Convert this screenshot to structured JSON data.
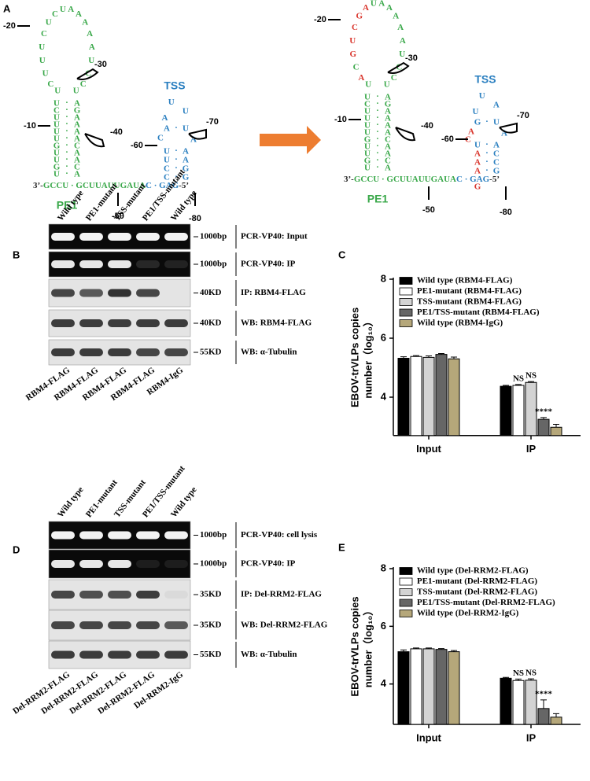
{
  "panel_a": {
    "letter": "A",
    "pe1_label": "PE1",
    "tss_label": "TSS",
    "positions": [
      "-20",
      "-10",
      "-30",
      "-40",
      "-50",
      "-60",
      "-70",
      "-80"
    ],
    "structures": [
      {
        "loop": [
          "U",
          "C",
          "U",
          "U",
          "U",
          "C",
          "U",
          "C",
          "U",
          "A",
          "A",
          "A",
          "A",
          "A",
          "U",
          "C",
          "C",
          "U"
        ],
        "stem": [
          [
            "U",
            "A"
          ],
          [
            "C",
            "G"
          ],
          [
            "U",
            "A"
          ],
          [
            "U",
            "A"
          ],
          [
            "U",
            "A"
          ],
          [
            "U",
            "A"
          ],
          [
            "G",
            "C"
          ],
          [
            "U",
            "A"
          ],
          [
            "U",
            "A"
          ],
          [
            "G",
            "C"
          ],
          [
            "U",
            "A"
          ]
        ],
        "tss_loop": [
          "A",
          "U",
          "U"
        ],
        "tss_top": [
          [
            "A",
            "U"
          ]
        ],
        "tss_bulge_left": [
          "C"
        ],
        "tss_bulge_right": [
          "A"
        ],
        "tss_stem": [
          [
            "U",
            "A"
          ],
          [
            "U",
            "A"
          ],
          [
            "C",
            "G"
          ],
          [
            "C",
            "G"
          ]
        ],
        "below": [],
        "strand": [
          {
            "text": "3’-",
            "color": "#222222"
          },
          {
            "text": "GCCU · GCUUAUUGAUA",
            "color": "#3aa84a"
          },
          {
            "text": "C · GAG",
            "color": "#2a7fc0"
          },
          {
            "text": "-5’",
            "color": "#222222"
          }
        ]
      },
      {
        "loop": [
          "U",
          {
            "text": "A",
            "color": "#d9342b"
          },
          "C",
          {
            "text": "G",
            "color": "#d9342b"
          },
          {
            "text": "U",
            "color": "#d9342b"
          },
          {
            "text": "C",
            "color": "#d9342b"
          },
          {
            "text": "G",
            "color": "#d9342b"
          },
          {
            "text": "A",
            "color": "#d9342b"
          },
          "U",
          "A",
          "A",
          "A",
          "A",
          "A",
          "U",
          "C",
          "C",
          "U"
        ],
        "stem": [
          [
            "U",
            "A"
          ],
          [
            "C",
            "G"
          ],
          [
            "U",
            "A"
          ],
          [
            "U",
            "A"
          ],
          [
            "U",
            "A"
          ],
          [
            "U",
            "A"
          ],
          [
            "G",
            "C"
          ],
          [
            "U",
            "A"
          ],
          [
            "U",
            "A"
          ],
          [
            "G",
            "C"
          ],
          [
            "U",
            "A"
          ]
        ],
        "tss_loop": [
          "U",
          "U",
          "A"
        ],
        "tss_top": [
          [
            "G",
            "U"
          ]
        ],
        "tss_bulge_left": [
          {
            "text": "A",
            "color": "#d9342b"
          },
          {
            "text": "C",
            "color": "#d9342b"
          }
        ],
        "tss_bulge_right": [
          "A"
        ],
        "tss_stem": [
          [
            "U",
            "A"
          ],
          [
            {
              "text": "A",
              "color": "#d9342b"
            },
            "C"
          ],
          [
            {
              "text": "A",
              "color": "#d9342b"
            },
            "C"
          ],
          [
            {
              "text": "A",
              "color": "#d9342b"
            },
            "G"
          ]
        ],
        "below": [
          {
            "text": "G",
            "color": "#d9342b"
          }
        ],
        "strand": [
          {
            "text": "3’-",
            "color": "#222222"
          },
          {
            "text": "GCCU · GCUUAUUGAUA",
            "color": "#3aa84a"
          },
          {
            "text": "C · GAG",
            "color": "#2a7fc0"
          },
          {
            "text": "-5’",
            "color": "#222222"
          }
        ]
      }
    ]
  },
  "gels": [
    {
      "letter": "B",
      "lanes": [
        "Wild type",
        "PE1-mutant",
        "TSS-mutant",
        "PE1/TSS-mutant",
        "Wild type"
      ],
      "bottom_labels": [
        "RBM4-FLAG",
        "RBM4-FLAG",
        "RBM4-FLAG",
        "RBM4-FLAG",
        "RBM4-IgG"
      ],
      "rows": [
        {
          "marker": "1000bp",
          "label": "PCR-VP40: Input",
          "background": "dark",
          "bands": [
            0.95,
            0.95,
            0.95,
            0.95,
            0.95
          ]
        },
        {
          "marker": "1000bp",
          "label": "PCR-VP40: IP",
          "background": "dark",
          "bands": [
            0.9,
            0.9,
            0.9,
            0.12,
            0.1
          ]
        },
        {
          "marker": "40KD",
          "label": "IP: RBM4-FLAG",
          "background": "light",
          "bands": [
            0.8,
            0.7,
            0.9,
            0.8,
            0
          ]
        },
        {
          "marker": "40KD",
          "label": "WB: RBM4-FLAG",
          "background": "light",
          "bands": [
            0.85,
            0.85,
            0.85,
            0.85,
            0.85
          ]
        },
        {
          "marker": "55KD",
          "label": "WB: α-Tubulin",
          "background": "light",
          "bands": [
            0.85,
            0.85,
            0.85,
            0.8,
            0.8
          ]
        }
      ]
    },
    {
      "letter": "D",
      "lanes": [
        "Wild type",
        "PE1-mutant",
        "TSS-mutant",
        "PE1/TSS-mutant",
        "Wild type"
      ],
      "bottom_labels": [
        "Del-RRM2-FLAG",
        "Del-RRM2-FLAG",
        "Del-RRM2-FLAG",
        "Del-RRM2-FLAG",
        "Del-RRM2-IgG"
      ],
      "rows": [
        {
          "marker": "1000bp",
          "label": "PCR-VP40: cell lysis",
          "background": "dark",
          "bands": [
            0.95,
            0.95,
            0.95,
            0.95,
            0.95
          ]
        },
        {
          "marker": "1000bp",
          "label": "PCR-VP40: IP",
          "background": "dark",
          "bands": [
            0.9,
            0.9,
            0.9,
            0.08,
            0.08
          ]
        },
        {
          "marker": "35KD",
          "label": "IP:  Del-RRM2-FLAG",
          "background": "light",
          "bands": [
            0.8,
            0.75,
            0.75,
            0.85,
            0.05
          ]
        },
        {
          "marker": "35KD",
          "label": "WB: Del-RRM2-FLAG",
          "background": "light",
          "bands": [
            0.8,
            0.8,
            0.8,
            0.8,
            0.7
          ]
        },
        {
          "marker": "55KD",
          "label": "WB: α-Tubulin",
          "background": "light",
          "bands": [
            0.85,
            0.85,
            0.85,
            0.85,
            0.85
          ]
        }
      ]
    }
  ],
  "chart_data": [
    {
      "type": "bar",
      "letter": "C",
      "ylabel": [
        "EBOV-trVLPs copies",
        "number（log₁₀）"
      ],
      "categories": [
        "Input",
        "IP"
      ],
      "ylim": [
        2.7,
        8
      ],
      "yticks": [
        4,
        6,
        8
      ],
      "series": [
        {
          "name": "Wild type (RBM4-FLAG)",
          "color": "#000000",
          "values": [
            5.32,
            4.37
          ],
          "errors": [
            0.05,
            0.03
          ],
          "annotations": [
            null,
            null
          ]
        },
        {
          "name": "PE1-mutant (RBM4-FLAG)",
          "color": "#ffffff",
          "values": [
            5.38,
            4.4
          ],
          "errors": [
            0.03,
            0.03
          ],
          "annotations": [
            null,
            "NS"
          ]
        },
        {
          "name": "TSS-mutant (RBM4-FLAG)",
          "color": "#d3d3d3",
          "values": [
            5.35,
            4.5
          ],
          "errors": [
            0.05,
            0.03
          ],
          "annotations": [
            null,
            "NS"
          ]
        },
        {
          "name": "PE1/TSS-mutant (RBM4-FLAG)",
          "color": "#666666",
          "values": [
            5.45,
            3.25
          ],
          "errors": [
            0.03,
            0.06
          ],
          "annotations": [
            null,
            "****"
          ]
        },
        {
          "name": "Wild type (RBM4-IgG)",
          "color": "#b5a77a",
          "values": [
            5.3,
            2.98
          ],
          "errors": [
            0.06,
            0.1
          ],
          "annotations": [
            null,
            null
          ]
        }
      ]
    },
    {
      "type": "bar",
      "letter": "E",
      "ylabel": [
        "EBOV-trVLPs copies",
        "number（log₁₀）"
      ],
      "categories": [
        "Input",
        "IP"
      ],
      "ylim": [
        2.6,
        8
      ],
      "yticks": [
        4,
        6,
        8
      ],
      "series": [
        {
          "name": "Wild type (Del-RRM2-FLAG)",
          "color": "#000000",
          "values": [
            5.12,
            4.2
          ],
          "errors": [
            0.06,
            0.03
          ],
          "annotations": [
            null,
            null
          ]
        },
        {
          "name": "PE1-mutant (Del-RRM2-FLAG)",
          "color": "#ffffff",
          "values": [
            5.22,
            4.12
          ],
          "errors": [
            0.03,
            0.05
          ],
          "annotations": [
            null,
            "NS"
          ]
        },
        {
          "name": "TSS-mutant (Del-RRM2-FLAG)",
          "color": "#d3d3d3",
          "values": [
            5.22,
            4.13
          ],
          "errors": [
            0.03,
            0.05
          ],
          "annotations": [
            null,
            "NS"
          ]
        },
        {
          "name": "PE1/TSS-mutant (Del-RRM2-FLAG)",
          "color": "#666666",
          "values": [
            5.2,
            3.15
          ],
          "errors": [
            0.03,
            0.3
          ],
          "annotations": [
            null,
            "****"
          ]
        },
        {
          "name": "Wild type (Del-RRM2-IgG)",
          "color": "#b5a77a",
          "values": [
            5.12,
            2.85
          ],
          "errors": [
            0.04,
            0.12
          ],
          "annotations": [
            null,
            null
          ]
        }
      ]
    }
  ]
}
